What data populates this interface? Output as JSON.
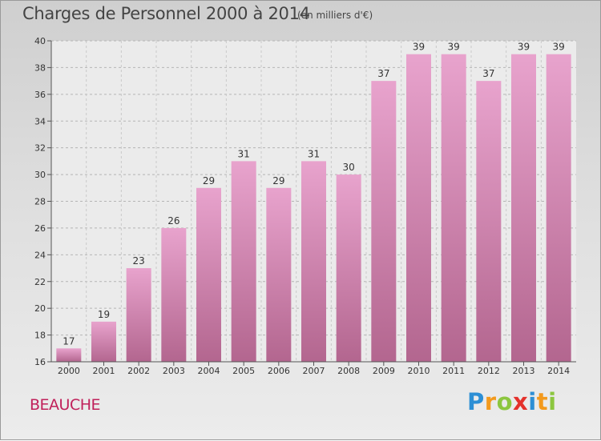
{
  "chart_data": {
    "type": "bar",
    "title": "Charges de Personnel 2000 à 2014",
    "subtitle": "(en milliers d'€)",
    "categories": [
      "2000",
      "2001",
      "2002",
      "2003",
      "2004",
      "2005",
      "2006",
      "2007",
      "2008",
      "2009",
      "2010",
      "2011",
      "2012",
      "2013",
      "2014"
    ],
    "values": [
      17,
      19,
      23,
      26,
      29,
      31,
      29,
      31,
      30,
      37,
      39,
      39,
      37,
      39,
      39
    ],
    "ylim": [
      16,
      40
    ],
    "yticks": [
      16,
      18,
      20,
      22,
      24,
      26,
      28,
      30,
      32,
      34,
      36,
      38,
      40
    ],
    "grid": true,
    "bar_color_top": "#e8a3cd",
    "bar_color_bottom": "#b3668f"
  },
  "footer": {
    "commune": "BEAUCHE",
    "commune_color": "#c0205a",
    "brand_letters": [
      {
        "char": "P",
        "color": "#2d8fd5"
      },
      {
        "char": "r",
        "color": "#f39a1d"
      },
      {
        "char": "o",
        "color": "#8cc63f"
      },
      {
        "char": "x",
        "color": "#e4312b"
      },
      {
        "char": "i",
        "color": "#2d8fd5"
      },
      {
        "char": "t",
        "color": "#f39a1d"
      },
      {
        "char": "i",
        "color": "#8cc63f"
      }
    ]
  }
}
